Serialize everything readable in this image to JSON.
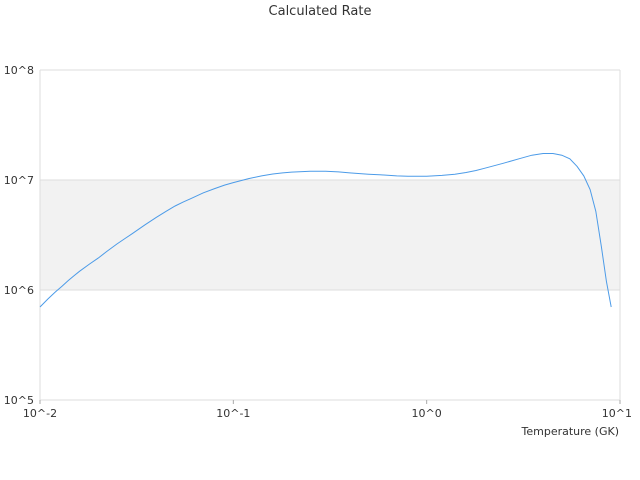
{
  "chart_data": {
    "type": "line",
    "title": "Calculated Rate",
    "xlabel": "Temperature (GK)",
    "ylabel": "",
    "x_scale": "log",
    "y_scale": "log",
    "xlim": [
      0.01,
      10
    ],
    "ylim": [
      100000,
      100000000
    ],
    "x_ticks": [
      {
        "value": 0.01,
        "label": "10^-2"
      },
      {
        "value": 0.1,
        "label": "10^-1"
      },
      {
        "value": 1,
        "label": "10^0"
      },
      {
        "value": 10,
        "label": "10^1"
      }
    ],
    "y_ticks": [
      {
        "value": 100000,
        "label": "10^5"
      },
      {
        "value": 1000000,
        "label": "10^6"
      },
      {
        "value": 10000000,
        "label": "10^7"
      },
      {
        "value": 100000000,
        "label": "10^8"
      }
    ],
    "grid": true,
    "line_color": "#4c9be8",
    "band_color": "#f2f2f2",
    "series": [
      {
        "x": [
          0.01,
          0.011,
          0.012,
          0.013,
          0.014,
          0.015,
          0.016,
          0.018,
          0.02,
          0.022,
          0.025,
          0.028,
          0.03,
          0.035,
          0.04,
          0.045,
          0.05,
          0.055,
          0.06,
          0.07,
          0.08,
          0.09,
          0.1,
          0.12,
          0.14,
          0.16,
          0.18,
          0.2,
          0.25,
          0.3,
          0.35,
          0.4,
          0.5,
          0.6,
          0.7,
          0.8,
          0.9,
          1.0,
          1.2,
          1.4,
          1.6,
          1.8,
          2.0,
          2.5,
          3.0,
          3.5,
          4.0,
          4.5,
          5.0,
          5.5,
          6.0,
          6.5,
          7.0,
          7.5,
          8.0,
          8.5,
          9.0
        ],
        "y": [
          700000,
          830000,
          960000,
          1080000,
          1220000,
          1350000,
          1480000,
          1720000,
          1950000,
          2220000,
          2620000,
          3000000,
          3250000,
          3920000,
          4580000,
          5200000,
          5800000,
          6300000,
          6750000,
          7650000,
          8350000,
          8980000,
          9480000,
          10300000,
          10900000,
          11350000,
          11600000,
          11800000,
          12000000,
          12000000,
          11850000,
          11600000,
          11300000,
          11100000,
          10900000,
          10800000,
          10800000,
          10800000,
          11000000,
          11300000,
          11700000,
          12200000,
          12800000,
          14200000,
          15600000,
          16800000,
          17400000,
          17400000,
          16800000,
          15600000,
          13300000,
          10900000,
          8200000,
          5200000,
          2500000,
          1200000,
          700000
        ]
      }
    ]
  }
}
